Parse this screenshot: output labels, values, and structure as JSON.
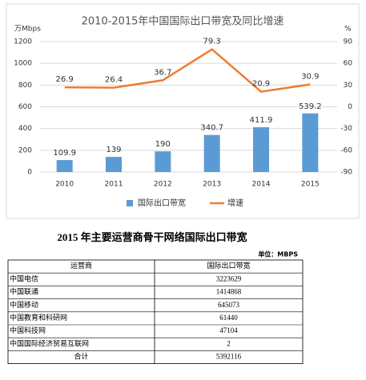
{
  "chart_data": {
    "type": "bar-line",
    "title": "2010-2015年中国国际出口带宽及同比增速",
    "ylabel": "万Mbps",
    "y2label": "%",
    "categories": [
      "2010",
      "2011",
      "2012",
      "2013",
      "2014",
      "2015"
    ],
    "series": [
      {
        "name": "国际出口带宽",
        "type": "bar",
        "color": "#5b9bd5",
        "values": [
          109.9,
          139,
          190,
          340.7,
          411.9,
          539.2
        ]
      },
      {
        "name": "增速",
        "type": "line",
        "axis": "y2",
        "color": "#ed7d31",
        "values": [
          26.9,
          26.4,
          36.7,
          79.3,
          20.9,
          30.9
        ]
      }
    ],
    "ylim": [
      0,
      1200
    ],
    "yticks": [
      0,
      200,
      400,
      600,
      800,
      1000,
      1200
    ],
    "y2lim": [
      -90,
      90
    ],
    "y2ticks": [
      -90,
      -60,
      -30,
      0,
      30,
      60,
      90
    ],
    "grid": true,
    "legend": "bottom"
  },
  "table": {
    "title": "2015 年主要运营商骨干网络国际出口带宽",
    "unit": "单位：MBPS",
    "header": [
      "运营商",
      "国际出口带宽"
    ],
    "rows": [
      [
        "中国电信",
        3223629
      ],
      [
        "中国联通",
        1414868
      ],
      [
        "中国移动",
        645073
      ],
      [
        "中国教育和科研网",
        61440
      ],
      [
        "中国科技网",
        47104
      ],
      [
        "中国国际经济贸易互联网",
        2
      ]
    ],
    "total": [
      "合计",
      5392116
    ]
  }
}
